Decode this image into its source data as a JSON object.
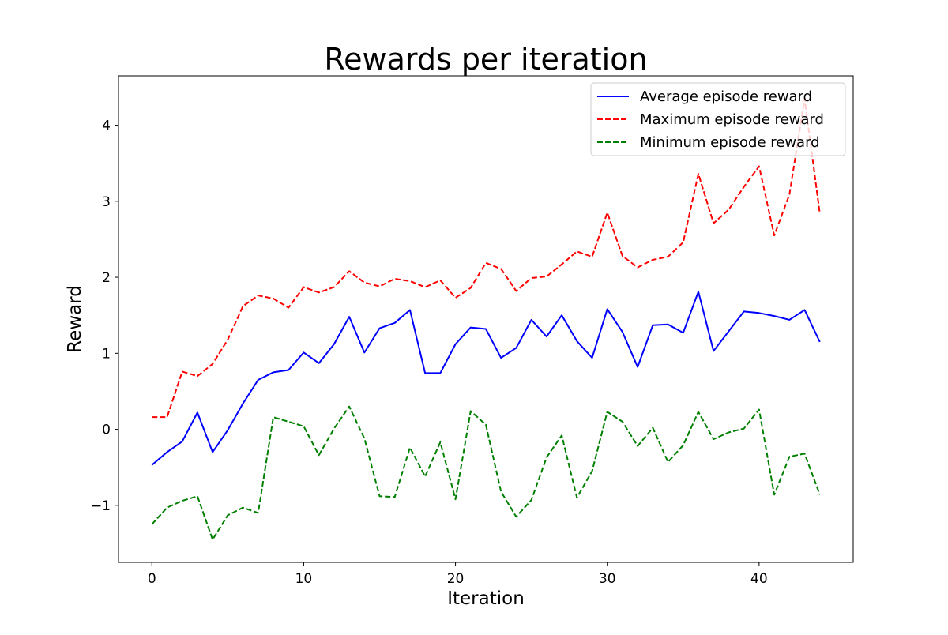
{
  "colors": {
    "average": "#0000ff",
    "maximum": "#ff0000",
    "minimum": "#008000",
    "axes": "#000000",
    "background": "#ffffff",
    "legend_border": "#cccccc"
  },
  "chart_data": {
    "type": "line",
    "title": "Rewards per iteration",
    "xlabel": "Iteration",
    "ylabel": "Reward",
    "xlim": [
      -2.2,
      46.2
    ],
    "ylim": [
      -1.75,
      4.65
    ],
    "xticks": [
      0,
      10,
      20,
      30,
      40
    ],
    "xtick_labels": [
      "0",
      "10",
      "20",
      "30",
      "40"
    ],
    "yticks": [
      -1,
      0,
      1,
      2,
      3,
      4
    ],
    "ytick_labels": [
      "−1",
      "0",
      "1",
      "2",
      "3",
      "4"
    ],
    "grid": false,
    "legend_position": "top-right",
    "x": [
      0,
      1,
      2,
      3,
      4,
      5,
      6,
      7,
      8,
      9,
      10,
      11,
      12,
      13,
      14,
      15,
      16,
      17,
      18,
      19,
      20,
      21,
      22,
      23,
      24,
      25,
      26,
      27,
      28,
      29,
      30,
      31,
      32,
      33,
      34,
      35,
      36,
      37,
      38,
      39,
      40,
      41,
      42,
      43,
      44
    ],
    "series": [
      {
        "name": "Average episode reward",
        "style": "solid",
        "color": "#0000ff",
        "values": [
          -0.47,
          -0.3,
          -0.16,
          0.22,
          -0.3,
          -0.01,
          0.34,
          0.65,
          0.75,
          0.78,
          1.01,
          0.87,
          1.12,
          1.48,
          1.01,
          1.33,
          1.4,
          1.57,
          0.74,
          0.74,
          1.12,
          1.34,
          1.32,
          0.94,
          1.07,
          1.44,
          1.22,
          1.5,
          1.16,
          0.94,
          1.58,
          1.28,
          0.82,
          1.37,
          1.38,
          1.27,
          1.81,
          1.03,
          1.29,
          1.55,
          1.53,
          1.49,
          1.44,
          1.57,
          1.15
        ]
      },
      {
        "name": "Maximum episode reward",
        "style": "dashed",
        "color": "#ff0000",
        "values": [
          0.16,
          0.16,
          0.76,
          0.7,
          0.86,
          1.18,
          1.62,
          1.76,
          1.72,
          1.6,
          1.87,
          1.8,
          1.87,
          2.08,
          1.93,
          1.88,
          1.98,
          1.95,
          1.87,
          1.96,
          1.73,
          1.86,
          2.19,
          2.11,
          1.82,
          1.99,
          2.01,
          2.17,
          2.34,
          2.27,
          2.85,
          2.28,
          2.13,
          2.23,
          2.27,
          2.46,
          3.36,
          2.71,
          2.89,
          3.19,
          3.46,
          2.55,
          3.09,
          4.35,
          2.84
        ]
      },
      {
        "name": "Minimum episode reward",
        "style": "dashed",
        "color": "#008000",
        "values": [
          -1.25,
          -1.03,
          -0.94,
          -0.88,
          -1.45,
          -1.13,
          -1.03,
          -1.1,
          0.16,
          0.1,
          0.04,
          -0.34,
          0.01,
          0.3,
          -0.12,
          -0.88,
          -0.89,
          -0.24,
          -0.62,
          -0.17,
          -0.92,
          0.24,
          0.06,
          -0.82,
          -1.15,
          -0.93,
          -0.37,
          -0.08,
          -0.9,
          -0.55,
          0.23,
          0.1,
          -0.22,
          0.02,
          -0.43,
          -0.21,
          0.23,
          -0.13,
          -0.04,
          0.01,
          0.26,
          -0.86,
          -0.36,
          -0.32,
          -0.86
        ]
      }
    ]
  }
}
